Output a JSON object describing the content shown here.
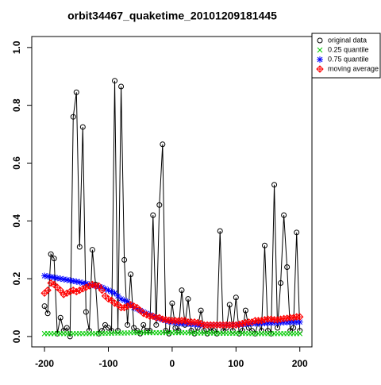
{
  "chart_data": {
    "type": "line",
    "title": "orbit34467_quaketime_20101209181445",
    "x": [
      -200,
      -195,
      -190,
      -185,
      -180,
      -175,
      -170,
      -165,
      -160,
      -155,
      -150,
      -145,
      -140,
      -135,
      -130,
      -125,
      -120,
      -115,
      -110,
      -105,
      -100,
      -95,
      -90,
      -85,
      -80,
      -75,
      -70,
      -65,
      -60,
      -55,
      -50,
      -45,
      -40,
      -35,
      -30,
      -25,
      -20,
      -15,
      -10,
      -5,
      0,
      5,
      10,
      15,
      20,
      25,
      30,
      35,
      40,
      45,
      50,
      55,
      60,
      65,
      70,
      75,
      80,
      85,
      90,
      95,
      100,
      105,
      110,
      115,
      120,
      125,
      130,
      135,
      140,
      145,
      150,
      155,
      160,
      165,
      170,
      175,
      180,
      185,
      190,
      195,
      200
    ],
    "series": [
      {
        "name": "original data",
        "color": "#000000",
        "marker": "circle",
        "line": true,
        "values": [
          0.105,
          0.08,
          0.285,
          0.27,
          0.01,
          0.065,
          0.02,
          0.03,
          0.0,
          0.76,
          0.845,
          0.31,
          0.725,
          0.085,
          0.02,
          0.3,
          0.18,
          0.01,
          0.02,
          0.04,
          0.03,
          0.02,
          0.885,
          0.02,
          0.865,
          0.265,
          0.04,
          0.215,
          0.03,
          0.02,
          0.01,
          0.04,
          0.02,
          0.02,
          0.42,
          0.04,
          0.455,
          0.665,
          0.02,
          0.01,
          0.115,
          0.03,
          0.02,
          0.16,
          0.04,
          0.13,
          0.02,
          0.01,
          0.03,
          0.09,
          0.02,
          0.01,
          0.03,
          0.02,
          0.01,
          0.365,
          0.02,
          0.03,
          0.11,
          0.02,
          0.135,
          0.01,
          0.02,
          0.09,
          0.03,
          0.02,
          0.01,
          0.05,
          0.02,
          0.315,
          0.02,
          0.01,
          0.525,
          0.03,
          0.185,
          0.42,
          0.24,
          0.02,
          0.03,
          0.36,
          0.02
        ]
      },
      {
        "name": "0.25 quantile",
        "color": "#00cc00",
        "marker": "x",
        "line": false,
        "values": [
          0.01,
          0.01,
          0.01,
          0.01,
          0.01,
          0.01,
          0.01,
          0.01,
          0.01,
          0.01,
          0.01,
          0.01,
          0.01,
          0.01,
          0.01,
          0.01,
          0.01,
          0.01,
          0.011,
          0.011,
          0.011,
          0.011,
          0.012,
          0.012,
          0.012,
          0.012,
          0.012,
          0.013,
          0.013,
          0.013,
          0.013,
          0.013,
          0.013,
          0.013,
          0.013,
          0.013,
          0.013,
          0.013,
          0.013,
          0.013,
          0.013,
          0.013,
          0.013,
          0.013,
          0.013,
          0.013,
          0.012,
          0.012,
          0.012,
          0.012,
          0.012,
          0.012,
          0.012,
          0.012,
          0.011,
          0.011,
          0.011,
          0.011,
          0.011,
          0.011,
          0.011,
          0.011,
          0.011,
          0.011,
          0.01,
          0.01,
          0.01,
          0.01,
          0.01,
          0.01,
          0.01,
          0.01,
          0.01,
          0.01,
          0.01,
          0.01,
          0.01,
          0.01,
          0.01,
          0.01,
          0.01
        ]
      },
      {
        "name": "0.75 quantile",
        "color": "#0000ff",
        "marker": "star",
        "line": false,
        "values": [
          0.21,
          0.208,
          0.206,
          0.204,
          0.202,
          0.2,
          0.198,
          0.196,
          0.194,
          0.192,
          0.19,
          0.188,
          0.185,
          0.183,
          0.18,
          0.178,
          0.175,
          0.172,
          0.17,
          0.165,
          0.16,
          0.155,
          0.15,
          0.14,
          0.13,
          0.125,
          0.12,
          0.11,
          0.1,
          0.095,
          0.09,
          0.085,
          0.08,
          0.075,
          0.07,
          0.066,
          0.062,
          0.058,
          0.055,
          0.052,
          0.05,
          0.048,
          0.046,
          0.045,
          0.045,
          0.044,
          0.043,
          0.042,
          0.041,
          0.04,
          0.04,
          0.04,
          0.04,
          0.04,
          0.04,
          0.04,
          0.04,
          0.04,
          0.04,
          0.04,
          0.04,
          0.041,
          0.042,
          0.043,
          0.044,
          0.045,
          0.045,
          0.045,
          0.046,
          0.046,
          0.047,
          0.047,
          0.048,
          0.048,
          0.048,
          0.049,
          0.049,
          0.05,
          0.05,
          0.05,
          0.05
        ]
      },
      {
        "name": "moving average",
        "color": "#ff0000",
        "marker": "diamond",
        "line": false,
        "values": [
          0.15,
          0.16,
          0.185,
          0.18,
          0.17,
          0.16,
          0.145,
          0.15,
          0.155,
          0.16,
          0.155,
          0.16,
          0.165,
          0.17,
          0.175,
          0.18,
          0.175,
          0.175,
          0.16,
          0.14,
          0.13,
          0.125,
          0.115,
          0.11,
          0.1,
          0.1,
          0.105,
          0.11,
          0.105,
          0.1,
          0.09,
          0.08,
          0.075,
          0.07,
          0.07,
          0.065,
          0.065,
          0.06,
          0.058,
          0.056,
          0.055,
          0.055,
          0.054,
          0.055,
          0.055,
          0.05,
          0.05,
          0.05,
          0.048,
          0.045,
          0.04,
          0.04,
          0.04,
          0.04,
          0.04,
          0.04,
          0.04,
          0.04,
          0.04,
          0.04,
          0.04,
          0.042,
          0.045,
          0.048,
          0.05,
          0.05,
          0.055,
          0.055,
          0.055,
          0.058,
          0.06,
          0.06,
          0.058,
          0.058,
          0.06,
          0.062,
          0.063,
          0.065,
          0.065,
          0.068,
          0.068
        ]
      }
    ],
    "xlim": [
      -220,
      219
    ],
    "ylim": [
      -0.036,
      1.038
    ],
    "xticks": [
      -200,
      -100,
      0,
      100,
      200
    ],
    "yticks": [
      {
        "value": 0,
        "label": "0.0"
      },
      {
        "value": 0.2,
        "label": "0.2"
      },
      {
        "value": 0.4,
        "label": "0.4"
      },
      {
        "value": 0.6,
        "label": "0.6"
      },
      {
        "value": 0.8,
        "label": "0.8"
      },
      {
        "value": 1,
        "label": "1.0"
      }
    ],
    "legend": "topright"
  }
}
